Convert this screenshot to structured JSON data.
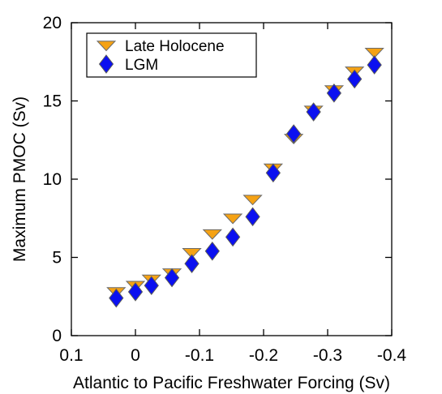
{
  "chart_data": {
    "type": "scatter",
    "title": "",
    "xlabel": "Atlantic to Pacific Freshwater Forcing (Sv)",
    "ylabel": "Maximum PMOC (Sv)",
    "xlim": [
      0.1,
      -0.4
    ],
    "ylim": [
      0,
      20
    ],
    "x_reversed": true,
    "xticks": [
      0.1,
      0,
      -0.1,
      -0.2,
      -0.3,
      -0.4
    ],
    "xtick_labels": [
      "0.1",
      "0",
      "-0.1",
      "-0.2",
      "-0.3",
      "-0.4"
    ],
    "yticks": [
      0,
      5,
      10,
      15,
      20
    ],
    "ytick_labels": [
      "0",
      "5",
      "10",
      "15",
      "20"
    ],
    "grid": false,
    "legend_position": "top-left",
    "series": [
      {
        "name": "Late Holocene",
        "marker": "triangle-down",
        "color": "#F5A214",
        "edge_color": "#6b6b6b",
        "x": [
          0.03,
          0.0,
          -0.025,
          -0.057,
          -0.088,
          -0.12,
          -0.152,
          -0.183,
          -0.215,
          -0.247,
          -0.278,
          -0.31,
          -0.342,
          -0.373
        ],
        "y": [
          2.8,
          3.2,
          3.6,
          4.0,
          5.3,
          6.5,
          7.5,
          8.7,
          10.7,
          12.6,
          14.4,
          15.7,
          16.9,
          18.1
        ]
      },
      {
        "name": "LGM",
        "marker": "diamond",
        "color": "#0B10F0",
        "edge_color": "#5a5a5a",
        "x": [
          0.03,
          0.0,
          -0.025,
          -0.057,
          -0.088,
          -0.12,
          -0.152,
          -0.183,
          -0.215,
          -0.247,
          -0.278,
          -0.31,
          -0.342,
          -0.373
        ],
        "y": [
          2.4,
          2.8,
          3.2,
          3.7,
          4.6,
          5.4,
          6.3,
          7.6,
          10.4,
          12.9,
          14.3,
          15.5,
          16.4,
          17.3
        ]
      }
    ]
  }
}
